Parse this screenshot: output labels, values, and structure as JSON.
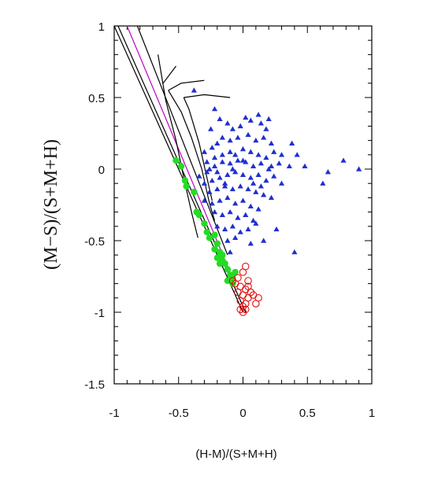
{
  "chart_data": {
    "type": "scatter",
    "title": "",
    "xlabel": "(H-M)/(S+M+H)",
    "ylabel": "(M−S)/(S+M+H)",
    "xlim": [
      -1,
      1
    ],
    "ylim": [
      -1.5,
      1
    ],
    "x_ticks": [
      -1,
      -0.5,
      0,
      0.5,
      1
    ],
    "x_tick_labels": [
      "-1",
      "-0.5",
      "0",
      "0.5",
      "1"
    ],
    "y_ticks": [
      -1.5,
      -1,
      -0.5,
      0,
      0.5,
      1
    ],
    "y_tick_labels": [
      "-1.5",
      "-1",
      "-0.5",
      "0",
      "0.5",
      "1"
    ],
    "grid": false,
    "legend": "none",
    "colors": {
      "triangles": "#1f2fd0",
      "filled_circles": "#22dd22",
      "open_circles": "#e01010",
      "lines": "#000000",
      "magenta_line": "#c000c0"
    },
    "series": [
      {
        "marker": "filled-triangle",
        "color": "#1f2fd0",
        "points": [
          [
            -0.38,
            0.55
          ],
          [
            -0.22,
            0.42
          ],
          [
            -0.25,
            0.28
          ],
          [
            -0.18,
            0.35
          ],
          [
            -0.12,
            0.32
          ],
          [
            -0.08,
            0.28
          ],
          [
            -0.02,
            0.3
          ],
          [
            0.02,
            0.36
          ],
          [
            0.06,
            0.34
          ],
          [
            0.12,
            0.38
          ],
          [
            0.14,
            0.32
          ],
          [
            0.18,
            0.28
          ],
          [
            0.2,
            0.35
          ],
          [
            0.22,
            0.18
          ],
          [
            0.16,
            0.22
          ],
          [
            0.1,
            0.2
          ],
          [
            0.04,
            0.24
          ],
          [
            -0.04,
            0.22
          ],
          [
            -0.1,
            0.2
          ],
          [
            -0.16,
            0.22
          ],
          [
            -0.2,
            0.18
          ],
          [
            -0.24,
            0.15
          ],
          [
            -0.3,
            0.12
          ],
          [
            -0.28,
            0.05
          ],
          [
            -0.22,
            0.08
          ],
          [
            -0.16,
            0.1
          ],
          [
            -0.1,
            0.12
          ],
          [
            -0.06,
            0.1
          ],
          [
            0.0,
            0.14
          ],
          [
            0.06,
            0.12
          ],
          [
            0.12,
            0.1
          ],
          [
            0.18,
            0.08
          ],
          [
            0.24,
            0.12
          ],
          [
            0.3,
            0.1
          ],
          [
            0.38,
            0.18
          ],
          [
            0.42,
            0.1
          ],
          [
            0.48,
            0.02
          ],
          [
            0.36,
            0.02
          ],
          [
            0.28,
            0.04
          ],
          [
            0.22,
            0.02
          ],
          [
            0.14,
            0.04
          ],
          [
            0.08,
            0.02
          ],
          [
            0.02,
            0.05
          ],
          [
            -0.04,
            0.06
          ],
          [
            -0.1,
            0.04
          ],
          [
            -0.16,
            0.05
          ],
          [
            -0.22,
            0.02
          ],
          [
            -0.28,
            -0.02
          ],
          [
            -0.34,
            -0.05
          ],
          [
            -0.3,
            -0.1
          ],
          [
            -0.24,
            -0.08
          ],
          [
            -0.18,
            -0.06
          ],
          [
            -0.12,
            -0.04
          ],
          [
            -0.06,
            -0.02
          ],
          [
            0.0,
            -0.04
          ],
          [
            0.06,
            -0.06
          ],
          [
            0.12,
            -0.04
          ],
          [
            0.18,
            -0.08
          ],
          [
            0.24,
            -0.05
          ],
          [
            0.3,
            -0.1
          ],
          [
            0.62,
            -0.1
          ],
          [
            0.78,
            0.06
          ],
          [
            0.9,
            0.0
          ],
          [
            0.66,
            -0.02
          ],
          [
            -0.26,
            -0.16
          ],
          [
            -0.2,
            -0.14
          ],
          [
            -0.14,
            -0.12
          ],
          [
            -0.08,
            -0.14
          ],
          [
            -0.02,
            -0.12
          ],
          [
            0.04,
            -0.14
          ],
          [
            0.1,
            -0.16
          ],
          [
            0.16,
            -0.18
          ],
          [
            0.22,
            -0.2
          ],
          [
            -0.3,
            -0.22
          ],
          [
            -0.24,
            -0.24
          ],
          [
            -0.18,
            -0.22
          ],
          [
            -0.12,
            -0.2
          ],
          [
            -0.06,
            -0.24
          ],
          [
            0.0,
            -0.22
          ],
          [
            0.06,
            -0.26
          ],
          [
            0.12,
            -0.28
          ],
          [
            -0.22,
            -0.3
          ],
          [
            -0.16,
            -0.32
          ],
          [
            -0.1,
            -0.3
          ],
          [
            -0.04,
            -0.34
          ],
          [
            0.02,
            -0.32
          ],
          [
            0.08,
            -0.36
          ],
          [
            -0.2,
            -0.4
          ],
          [
            -0.14,
            -0.42
          ],
          [
            -0.08,
            -0.4
          ],
          [
            -0.02,
            -0.44
          ],
          [
            0.04,
            -0.42
          ],
          [
            0.1,
            -0.38
          ],
          [
            0.26,
            -0.42
          ],
          [
            0.16,
            -0.5
          ],
          [
            0.06,
            -0.52
          ],
          [
            -0.06,
            -0.48
          ],
          [
            -0.12,
            -0.5
          ],
          [
            -0.1,
            -0.58
          ],
          [
            0.4,
            -0.58
          ],
          [
            -0.26,
            0.0
          ],
          [
            -0.2,
            -0.02
          ],
          [
            -0.14,
            -0.1
          ],
          [
            -0.08,
            0.0
          ],
          [
            0.0,
            0.06
          ],
          [
            0.08,
            -0.1
          ],
          [
            0.14,
            -0.12
          ],
          [
            0.2,
            0.0
          ]
        ]
      },
      {
        "marker": "filled-circle",
        "color": "#22dd22",
        "points": [
          [
            -0.52,
            0.06
          ],
          [
            -0.48,
            0.02
          ],
          [
            -0.45,
            -0.08
          ],
          [
            -0.44,
            -0.12
          ],
          [
            -0.38,
            -0.16
          ],
          [
            -0.36,
            -0.3
          ],
          [
            -0.34,
            -0.32
          ],
          [
            -0.3,
            -0.38
          ],
          [
            -0.28,
            -0.44
          ],
          [
            -0.26,
            -0.48
          ],
          [
            -0.22,
            -0.46
          ],
          [
            -0.2,
            -0.52
          ],
          [
            -0.22,
            -0.56
          ],
          [
            -0.18,
            -0.58
          ],
          [
            -0.2,
            -0.62
          ],
          [
            -0.16,
            -0.64
          ],
          [
            -0.14,
            -0.66
          ],
          [
            -0.18,
            -0.66
          ],
          [
            -0.12,
            -0.7
          ],
          [
            -0.1,
            -0.74
          ],
          [
            -0.08,
            -0.76
          ],
          [
            -0.12,
            -0.78
          ],
          [
            -0.08,
            -0.8
          ],
          [
            -0.06,
            -0.72
          ],
          [
            -0.16,
            -0.6
          ]
        ]
      },
      {
        "marker": "open-circle",
        "color": "#e01010",
        "points": [
          [
            0.02,
            -0.68
          ],
          [
            0.0,
            -0.72
          ],
          [
            -0.04,
            -0.76
          ],
          [
            0.04,
            -0.78
          ],
          [
            -0.06,
            -0.8
          ],
          [
            -0.02,
            -0.82
          ],
          [
            0.02,
            -0.84
          ],
          [
            0.06,
            -0.86
          ],
          [
            -0.04,
            -0.86
          ],
          [
            0.0,
            -0.88
          ],
          [
            0.04,
            -0.9
          ],
          [
            -0.02,
            -0.92
          ],
          [
            0.02,
            -0.94
          ],
          [
            0.0,
            -0.96
          ],
          [
            -0.02,
            -0.98
          ],
          [
            0.02,
            -0.98
          ],
          [
            0.0,
            -1.0
          ],
          [
            0.12,
            -0.9
          ],
          [
            0.1,
            -0.94
          ],
          [
            0.08,
            -0.88
          ],
          [
            -0.08,
            -0.78
          ],
          [
            0.04,
            -0.82
          ]
        ]
      }
    ],
    "lines": [
      {
        "color": "#000000",
        "points": [
          [
            -1,
            1
          ],
          [
            0,
            -1
          ]
        ]
      },
      {
        "color": "#000000",
        "points": [
          [
            -0.97,
            1
          ],
          [
            0.02,
            -1
          ]
        ]
      },
      {
        "color": "#c000c0",
        "points": [
          [
            -0.9,
            1
          ],
          [
            -0.1,
            -0.72
          ]
        ]
      },
      {
        "color": "#000000",
        "points": [
          [
            -0.82,
            1
          ],
          [
            -0.12,
            -0.6
          ]
        ]
      },
      {
        "color": "#000000",
        "points": [
          [
            -0.66,
            0.8
          ],
          [
            -0.6,
            0.48
          ],
          [
            -0.52,
            0.2
          ],
          [
            -0.46,
            -0.06
          ],
          [
            -0.4,
            -0.3
          ],
          [
            -0.35,
            -0.48
          ]
        ]
      },
      {
        "color": "#000000",
        "points": [
          [
            -0.62,
            0.6
          ],
          [
            -0.52,
            0.72
          ]
        ]
      },
      {
        "color": "#000000",
        "points": [
          [
            -0.58,
            0.55
          ],
          [
            -0.48,
            0.4
          ],
          [
            -0.4,
            0.22
          ],
          [
            -0.32,
            0.0
          ],
          [
            -0.26,
            -0.24
          ],
          [
            -0.22,
            -0.36
          ]
        ]
      },
      {
        "color": "#000000",
        "points": [
          [
            -0.58,
            0.55
          ],
          [
            -0.48,
            0.6
          ],
          [
            -0.3,
            0.62
          ]
        ]
      },
      {
        "color": "#000000",
        "points": [
          [
            -0.46,
            0.5
          ],
          [
            -0.42,
            0.42
          ],
          [
            -0.34,
            0.18
          ],
          [
            -0.28,
            -0.06
          ],
          [
            -0.24,
            -0.22
          ]
        ]
      },
      {
        "color": "#000000",
        "points": [
          [
            -0.46,
            0.5
          ],
          [
            -0.3,
            0.52
          ],
          [
            -0.1,
            0.5
          ]
        ]
      }
    ]
  }
}
